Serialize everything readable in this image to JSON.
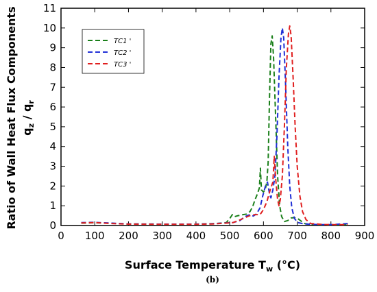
{
  "chart_data": {
    "type": "line",
    "xlabel_main": "Surface Temperature  T",
    "xlabel_sub": "w",
    "xlabel_unit": " (°C)",
    "ylabel_outer": "Ratio of Wall Heat Flux Components",
    "ylabel_inner_main": "q",
    "ylabel_inner_sub1": "z",
    "ylabel_inner_sep": " / q",
    "ylabel_inner_sub2": "r",
    "caption": "(b)",
    "xlim": [
      0,
      900
    ],
    "ylim": [
      0,
      11
    ],
    "xticks": [
      0,
      100,
      200,
      300,
      400,
      500,
      600,
      700,
      800,
      900
    ],
    "yticks": [
      0,
      1,
      2,
      3,
      4,
      5,
      6,
      7,
      8,
      9,
      10,
      11
    ],
    "grid": false,
    "legend_position": "top-left",
    "series": [
      {
        "name": "TC1 '",
        "color": "#1a7f1a",
        "points": [
          [
            60,
            0.12
          ],
          [
            100,
            0.14
          ],
          [
            150,
            0.11
          ],
          [
            200,
            0.08
          ],
          [
            300,
            0.07
          ],
          [
            400,
            0.07
          ],
          [
            460,
            0.1
          ],
          [
            490,
            0.15
          ],
          [
            500,
            0.35
          ],
          [
            508,
            0.55
          ],
          [
            515,
            0.45
          ],
          [
            525,
            0.5
          ],
          [
            540,
            0.55
          ],
          [
            550,
            0.58
          ],
          [
            560,
            0.7
          ],
          [
            568,
            0.95
          ],
          [
            575,
            1.3
          ],
          [
            582,
            1.6
          ],
          [
            588,
            1.9
          ],
          [
            591,
            2.9
          ],
          [
            594,
            1.8
          ],
          [
            600,
            1.7
          ],
          [
            605,
            1.8
          ],
          [
            610,
            2.2
          ],
          [
            614,
            3.2
          ],
          [
            618,
            6.5
          ],
          [
            622,
            9.2
          ],
          [
            626,
            9.6
          ],
          [
            630,
            8.5
          ],
          [
            636,
            5.5
          ],
          [
            642,
            2.5
          ],
          [
            648,
            1.0
          ],
          [
            654,
            0.45
          ],
          [
            662,
            0.2
          ],
          [
            672,
            0.25
          ],
          [
            682,
            0.38
          ],
          [
            692,
            0.4
          ],
          [
            702,
            0.35
          ],
          [
            712,
            0.22
          ],
          [
            722,
            0.1
          ],
          [
            740,
            0.05
          ],
          [
            780,
            0.03
          ],
          [
            820,
            0.03
          ],
          [
            850,
            0.05
          ]
        ]
      },
      {
        "name": "TC2 '",
        "color": "#1f2fd6",
        "points": [
          [
            60,
            0.15
          ],
          [
            100,
            0.16
          ],
          [
            150,
            0.12
          ],
          [
            200,
            0.08
          ],
          [
            300,
            0.07
          ],
          [
            400,
            0.07
          ],
          [
            450,
            0.09
          ],
          [
            480,
            0.12
          ],
          [
            510,
            0.15
          ],
          [
            530,
            0.25
          ],
          [
            545,
            0.45
          ],
          [
            560,
            0.55
          ],
          [
            570,
            0.48
          ],
          [
            580,
            0.6
          ],
          [
            590,
            0.9
          ],
          [
            598,
            1.5
          ],
          [
            606,
            2.0
          ],
          [
            612,
            2.2
          ],
          [
            618,
            1.6
          ],
          [
            622,
            1.4
          ],
          [
            628,
            1.8
          ],
          [
            634,
            2.5
          ],
          [
            640,
            4.5
          ],
          [
            646,
            7.5
          ],
          [
            652,
            9.5
          ],
          [
            656,
            10.0
          ],
          [
            660,
            9.5
          ],
          [
            666,
            7.0
          ],
          [
            672,
            4.0
          ],
          [
            678,
            2.0
          ],
          [
            684,
            0.9
          ],
          [
            692,
            0.35
          ],
          [
            702,
            0.15
          ],
          [
            720,
            0.08
          ],
          [
            760,
            0.05
          ],
          [
            800,
            0.04
          ],
          [
            850,
            0.1
          ]
        ]
      },
      {
        "name": "TC3 '",
        "color": "#e01f1f",
        "points": [
          [
            60,
            0.13
          ],
          [
            100,
            0.15
          ],
          [
            150,
            0.1
          ],
          [
            200,
            0.07
          ],
          [
            300,
            0.06
          ],
          [
            400,
            0.06
          ],
          [
            450,
            0.08
          ],
          [
            490,
            0.12
          ],
          [
            510,
            0.15
          ],
          [
            530,
            0.28
          ],
          [
            545,
            0.4
          ],
          [
            560,
            0.5
          ],
          [
            575,
            0.55
          ],
          [
            590,
            0.55
          ],
          [
            600,
            0.8
          ],
          [
            610,
            1.2
          ],
          [
            620,
            1.8
          ],
          [
            628,
            2.2
          ],
          [
            632,
            3.5
          ],
          [
            636,
            2.4
          ],
          [
            642,
            1.3
          ],
          [
            646,
            1.0
          ],
          [
            650,
            1.3
          ],
          [
            656,
            2.5
          ],
          [
            662,
            5.0
          ],
          [
            668,
            8.0
          ],
          [
            674,
            9.7
          ],
          [
            678,
            10.1
          ],
          [
            682,
            9.6
          ],
          [
            688,
            7.5
          ],
          [
            694,
            5.0
          ],
          [
            700,
            3.0
          ],
          [
            708,
            1.5
          ],
          [
            716,
            0.7
          ],
          [
            726,
            0.3
          ],
          [
            740,
            0.1
          ],
          [
            780,
            0.05
          ],
          [
            820,
            0.04
          ],
          [
            850,
            0.04
          ]
        ]
      }
    ]
  }
}
